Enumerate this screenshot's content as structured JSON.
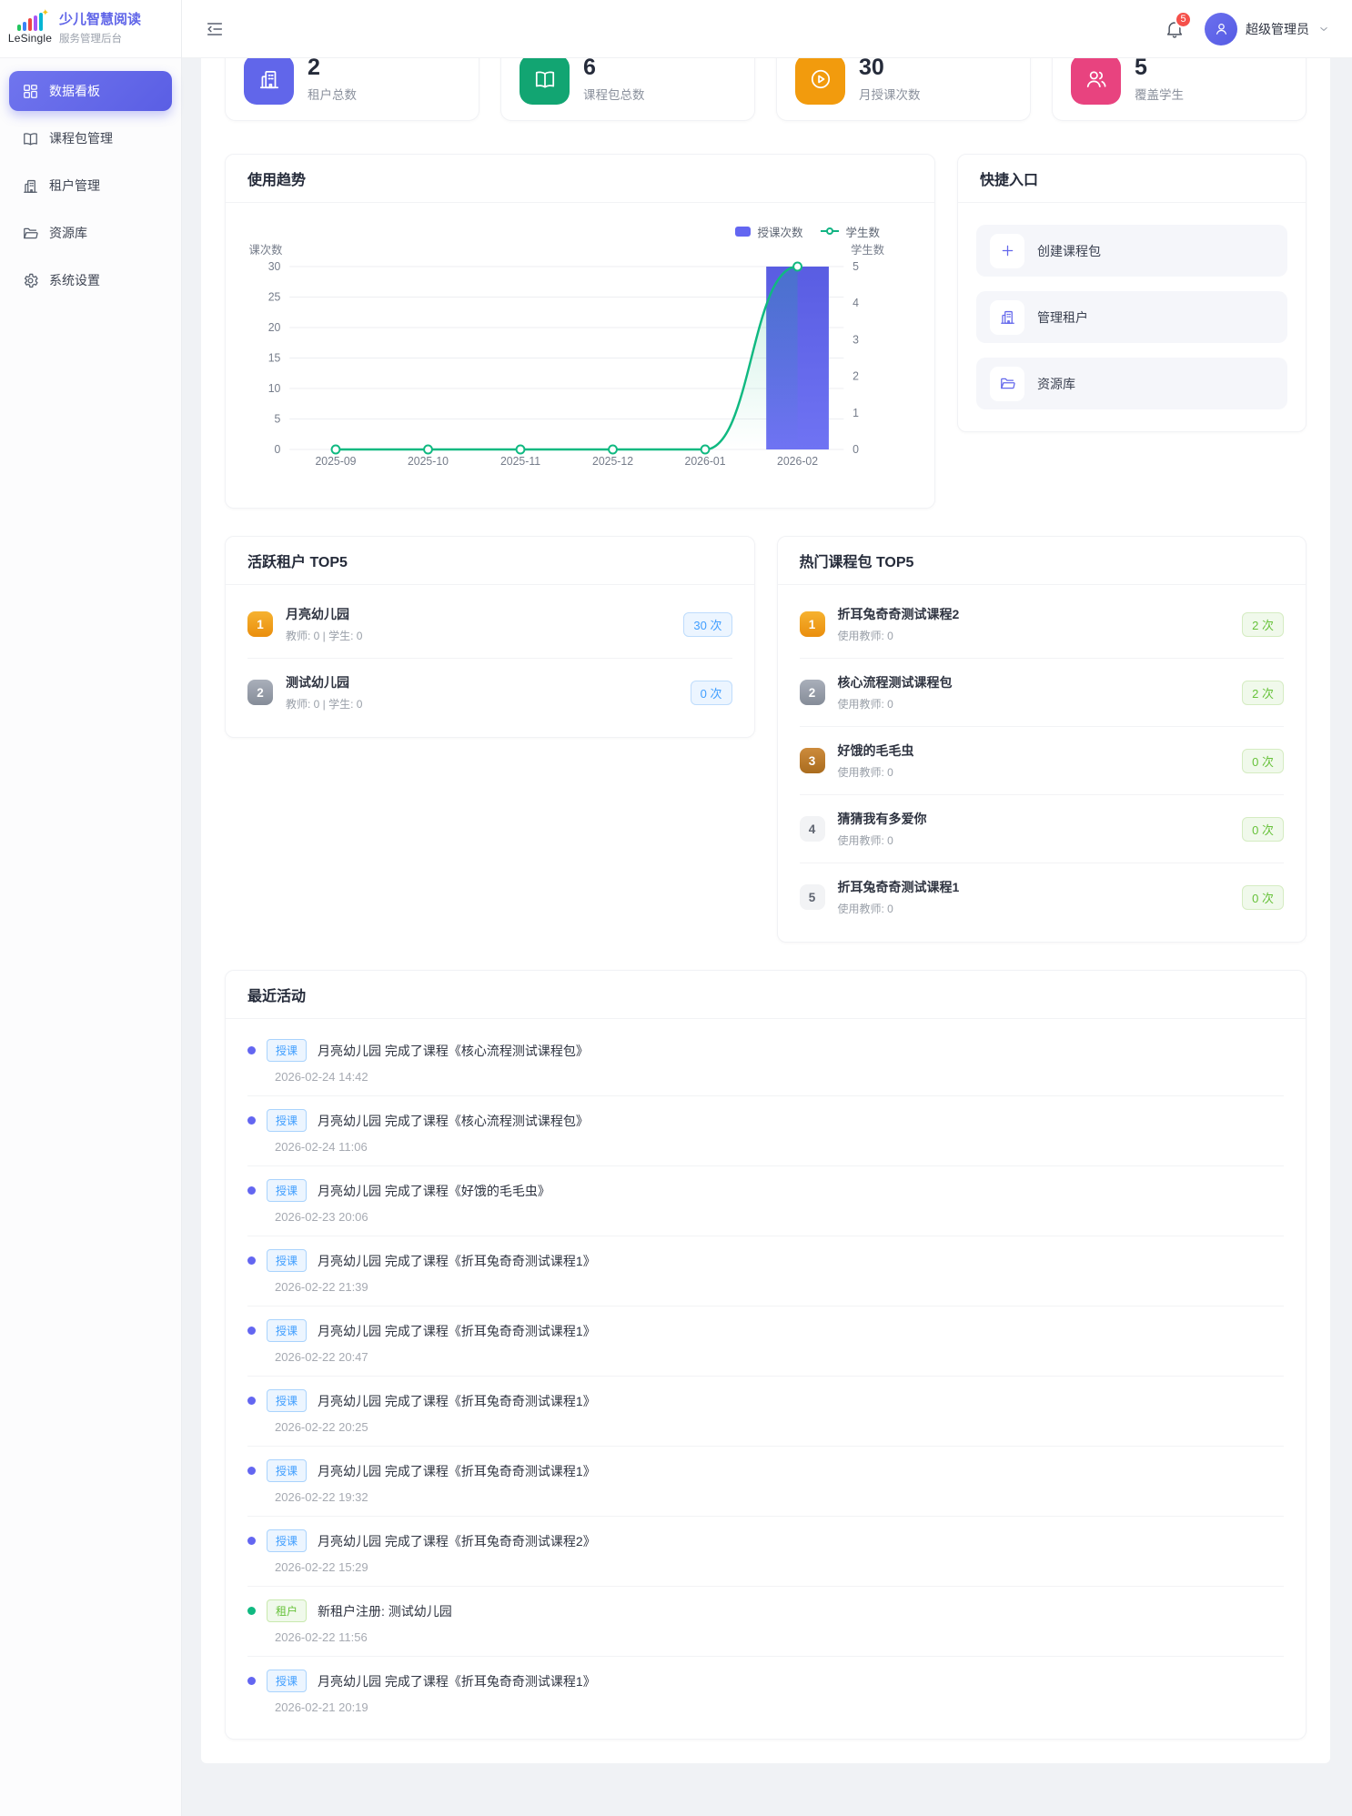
{
  "brand": {
    "logo": "LeSingle",
    "title": "少儿智慧阅读",
    "subtitle": "服务管理后台"
  },
  "header": {
    "badge_count": "5",
    "username": "超级管理员"
  },
  "sidebar": {
    "items": [
      {
        "label": "数据看板",
        "icon": "dashboard-icon",
        "active": true
      },
      {
        "label": "课程包管理",
        "icon": "book-icon",
        "active": false
      },
      {
        "label": "租户管理",
        "icon": "building-icon",
        "active": false
      },
      {
        "label": "资源库",
        "icon": "folder-icon",
        "active": false
      },
      {
        "label": "系统设置",
        "icon": "gear-icon",
        "active": false
      }
    ]
  },
  "stats": {
    "cards": [
      {
        "value": "2",
        "label": "租户总数",
        "icon": "building-icon",
        "color": "#6166ea"
      },
      {
        "value": "6",
        "label": "课程包总数",
        "icon": "book-icon",
        "color": "#12a572"
      },
      {
        "value": "30",
        "label": "月授课次数",
        "icon": "play-icon",
        "color": "#f29b0d"
      },
      {
        "value": "5",
        "label": "覆盖学生",
        "icon": "users-icon",
        "color": "#e8437f"
      }
    ]
  },
  "trend": {
    "title": "使用趋势"
  },
  "chart_data": {
    "type": "bar+line",
    "title": "使用趋势",
    "categories": [
      "2025-09",
      "2025-10",
      "2025-11",
      "2025-12",
      "2026-01",
      "2026-02"
    ],
    "series": [
      {
        "name": "授课次数",
        "type": "bar",
        "axis": "left",
        "color": "#6366f1",
        "values": [
          0,
          0,
          0,
          0,
          0,
          30
        ]
      },
      {
        "name": "学生数",
        "type": "line",
        "axis": "right",
        "color": "#10b981",
        "values": [
          0,
          0,
          0,
          0,
          0,
          5
        ]
      }
    ],
    "left_axis": {
      "name": "授课次数",
      "ticks": [
        30,
        25,
        20,
        15,
        10,
        5,
        0
      ],
      "max": 30
    },
    "right_axis": {
      "name": "学生数",
      "ticks": [
        5,
        4,
        3,
        2,
        1,
        0
      ],
      "max": 5
    },
    "grid": true,
    "legend_position": "top-right"
  },
  "quick": {
    "title": "快捷入口",
    "items": [
      {
        "label": "创建课程包",
        "icon": "plus-icon"
      },
      {
        "label": "管理租户",
        "icon": "building-icon"
      },
      {
        "label": "资源库",
        "icon": "folder-icon"
      }
    ]
  },
  "top_tenants": {
    "title": "活跃租户 TOP5",
    "items": [
      {
        "rank": "1",
        "name": "月亮幼儿园",
        "sub": "教师: 0 | 学生: 0",
        "count": "30 次"
      },
      {
        "rank": "2",
        "name": "测试幼儿园",
        "sub": "教师: 0 | 学生: 0",
        "count": "0 次"
      }
    ]
  },
  "top_packages": {
    "title": "热门课程包 TOP5",
    "items": [
      {
        "rank": "1",
        "name": "折耳兔奇奇测试课程2",
        "sub": "使用教师: 0",
        "count": "2 次"
      },
      {
        "rank": "2",
        "name": "核心流程测试课程包",
        "sub": "使用教师: 0",
        "count": "2 次"
      },
      {
        "rank": "3",
        "name": "好饿的毛毛虫",
        "sub": "使用教师: 0",
        "count": "0 次"
      },
      {
        "rank": "4",
        "name": "猜猜我有多爱你",
        "sub": "使用教师: 0",
        "count": "0 次"
      },
      {
        "rank": "5",
        "name": "折耳兔奇奇测试课程1",
        "sub": "使用教师: 0",
        "count": "0 次"
      }
    ]
  },
  "activities": {
    "title": "最近活动",
    "items": [
      {
        "type": "teach",
        "tag": "授课",
        "text": "月亮幼儿园 完成了课程《核心流程测试课程包》",
        "time": "2026-02-24 14:42"
      },
      {
        "type": "teach",
        "tag": "授课",
        "text": "月亮幼儿园 完成了课程《核心流程测试课程包》",
        "time": "2026-02-24 11:06"
      },
      {
        "type": "teach",
        "tag": "授课",
        "text": "月亮幼儿园 完成了课程《好饿的毛毛虫》",
        "time": "2026-02-23 20:06"
      },
      {
        "type": "teach",
        "tag": "授课",
        "text": "月亮幼儿园 完成了课程《折耳兔奇奇测试课程1》",
        "time": "2026-02-22 21:39"
      },
      {
        "type": "teach",
        "tag": "授课",
        "text": "月亮幼儿园 完成了课程《折耳兔奇奇测试课程1》",
        "time": "2026-02-22 20:47"
      },
      {
        "type": "teach",
        "tag": "授课",
        "text": "月亮幼儿园 完成了课程《折耳兔奇奇测试课程1》",
        "time": "2026-02-22 20:25"
      },
      {
        "type": "teach",
        "tag": "授课",
        "text": "月亮幼儿园 完成了课程《折耳兔奇奇测试课程1》",
        "time": "2026-02-22 19:32"
      },
      {
        "type": "teach",
        "tag": "授课",
        "text": "月亮幼儿园 完成了课程《折耳兔奇奇测试课程2》",
        "time": "2026-02-22 15:29"
      },
      {
        "type": "tenant",
        "tag": "租户",
        "text": "新租户注册: 测试幼儿园",
        "time": "2026-02-22 11:56"
      },
      {
        "type": "teach",
        "tag": "授课",
        "text": "月亮幼儿园 完成了课程《折耳兔奇奇测试课程1》",
        "time": "2026-02-21 20:19"
      }
    ]
  }
}
